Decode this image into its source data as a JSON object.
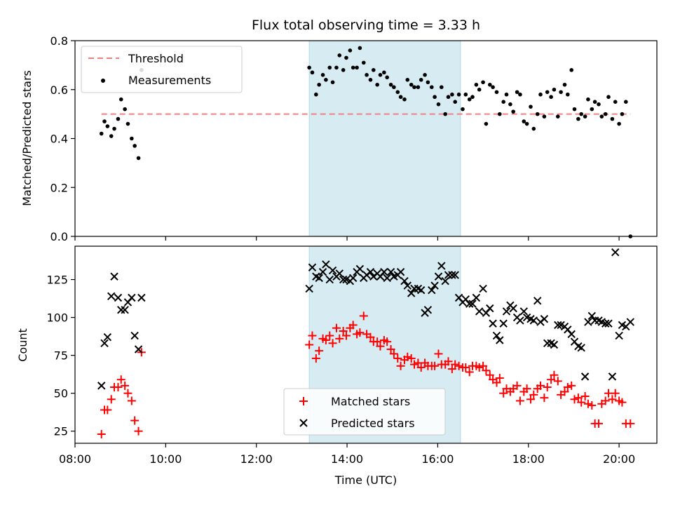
{
  "figure": {
    "title": "Flux total observing time = 3.33 h",
    "colors": {
      "threshold": "#f08080",
      "measurements": "#000000",
      "matched": "#ff0000",
      "predicted": "#000000",
      "highlight": "#add8e6"
    }
  },
  "chart_data": [
    {
      "type": "scatter",
      "ylabel": "Matched/Predicted stars",
      "xlabel": "",
      "xlim": [
        "08:00",
        "20:50"
      ],
      "ylim": [
        0,
        0.8
      ],
      "yticks": [
        "0.0",
        "0.2",
        "0.4",
        "0.6",
        "0.8"
      ],
      "highlight_span": [
        "13:10",
        "16:30"
      ],
      "legend": {
        "placement": "top-left",
        "entries": [
          "Threshold",
          "Measurements"
        ]
      },
      "threshold": {
        "name": "Threshold",
        "value": 0.5,
        "x_range": [
          "08:35",
          "20:15"
        ]
      },
      "series": [
        {
          "name": "Measurements",
          "marker": "dot",
          "x": [
            "08:35",
            "08:39",
            "08:43",
            "08:48",
            "08:52",
            "08:57",
            "09:01",
            "09:06",
            "09:10",
            "09:15",
            "09:19",
            "09:24",
            "09:28",
            "13:10",
            "13:14",
            "13:19",
            "13:23",
            "13:28",
            "13:32",
            "13:37",
            "13:41",
            "13:46",
            "13:50",
            "13:55",
            "13:59",
            "14:04",
            "14:08",
            "14:13",
            "14:17",
            "14:22",
            "14:26",
            "14:31",
            "14:35",
            "14:40",
            "14:44",
            "14:49",
            "14:53",
            "14:58",
            "15:02",
            "15:07",
            "15:11",
            "15:16",
            "15:20",
            "15:25",
            "15:29",
            "15:34",
            "15:38",
            "15:43",
            "15:47",
            "15:52",
            "15:56",
            "16:01",
            "16:05",
            "16:10",
            "16:14",
            "16:19",
            "16:23",
            "16:28",
            "16:33",
            "16:37",
            "16:42",
            "16:46",
            "16:51",
            "16:55",
            "17:00",
            "17:04",
            "17:09",
            "17:13",
            "17:18",
            "17:22",
            "17:27",
            "17:31",
            "17:36",
            "17:40",
            "17:45",
            "17:49",
            "17:54",
            "17:58",
            "18:03",
            "18:07",
            "18:12",
            "18:16",
            "18:21",
            "18:25",
            "18:30",
            "18:34",
            "18:39",
            "18:43",
            "18:48",
            "18:52",
            "18:57",
            "19:01",
            "19:06",
            "19:10",
            "19:15",
            "19:19",
            "19:24",
            "19:28",
            "19:33",
            "19:37",
            "19:42",
            "19:46",
            "19:51",
            "19:55",
            "20:00",
            "20:04",
            "20:09",
            "20:15"
          ],
          "values": [
            0.42,
            0.47,
            0.45,
            0.41,
            0.44,
            0.48,
            0.56,
            0.52,
            0.46,
            0.4,
            0.37,
            0.32,
            0.68,
            0.69,
            0.67,
            0.58,
            0.62,
            0.66,
            0.64,
            0.69,
            0.63,
            0.69,
            0.74,
            0.68,
            0.73,
            0.76,
            0.69,
            0.69,
            0.77,
            0.71,
            0.66,
            0.64,
            0.68,
            0.62,
            0.66,
            0.67,
            0.65,
            0.62,
            0.61,
            0.59,
            0.57,
            0.56,
            0.64,
            0.62,
            0.61,
            0.61,
            0.64,
            0.66,
            0.63,
            0.61,
            0.57,
            0.54,
            0.61,
            0.5,
            0.57,
            0.58,
            0.55,
            0.58,
            0.52,
            0.58,
            0.56,
            0.57,
            0.62,
            0.6,
            0.63,
            0.46,
            0.62,
            0.61,
            0.59,
            0.5,
            0.55,
            0.58,
            0.54,
            0.51,
            0.59,
            0.58,
            0.47,
            0.46,
            0.53,
            0.44,
            0.5,
            0.58,
            0.49,
            0.59,
            0.57,
            0.6,
            0.49,
            0.59,
            0.62,
            0.58,
            0.68,
            0.52,
            0.48,
            0.5,
            0.49,
            0.56,
            0.52,
            0.55,
            0.54,
            0.49,
            0.5,
            0.57,
            0.48,
            0.55,
            0.46,
            0.5,
            0.55,
            0.0
          ]
        }
      ]
    },
    {
      "type": "scatter",
      "ylabel": "Count",
      "xlabel": "Time (UTC)",
      "xlim": [
        "08:00",
        "20:50"
      ],
      "ylim": [
        17,
        147
      ],
      "yticks": [
        "25",
        "50",
        "75",
        "100",
        "125"
      ],
      "xticks": [
        "08:00",
        "10:00",
        "12:00",
        "14:00",
        "16:00",
        "18:00",
        "20:00"
      ],
      "highlight_span": [
        "13:10",
        "16:30"
      ],
      "legend": {
        "placement": "bottom-center",
        "entries": [
          "Matched stars",
          "Predicted stars"
        ]
      },
      "series": [
        {
          "name": "Matched stars",
          "marker": "plus",
          "x": [
            "08:35",
            "08:39",
            "08:43",
            "08:48",
            "08:52",
            "08:57",
            "09:01",
            "09:06",
            "09:10",
            "09:15",
            "09:19",
            "09:24",
            "09:28",
            "13:10",
            "13:14",
            "13:19",
            "13:23",
            "13:28",
            "13:32",
            "13:37",
            "13:41",
            "13:46",
            "13:50",
            "13:55",
            "13:59",
            "14:04",
            "14:08",
            "14:13",
            "14:17",
            "14:22",
            "14:26",
            "14:31",
            "14:35",
            "14:40",
            "14:44",
            "14:49",
            "14:53",
            "14:58",
            "15:02",
            "15:07",
            "15:11",
            "15:16",
            "15:20",
            "15:25",
            "15:29",
            "15:34",
            "15:38",
            "15:43",
            "15:47",
            "15:52",
            "15:56",
            "16:01",
            "16:05",
            "16:10",
            "16:14",
            "16:19",
            "16:23",
            "16:28",
            "16:33",
            "16:37",
            "16:42",
            "16:46",
            "16:51",
            "16:55",
            "17:00",
            "17:04",
            "17:09",
            "17:13",
            "17:18",
            "17:22",
            "17:27",
            "17:31",
            "17:36",
            "17:40",
            "17:45",
            "17:49",
            "17:54",
            "17:58",
            "18:03",
            "18:07",
            "18:12",
            "18:16",
            "18:21",
            "18:25",
            "18:30",
            "18:34",
            "18:39",
            "18:43",
            "18:48",
            "18:52",
            "18:57",
            "19:01",
            "19:06",
            "19:10",
            "19:15",
            "19:19",
            "19:24",
            "19:28",
            "19:33",
            "19:37",
            "19:42",
            "19:46",
            "19:51",
            "19:55",
            "20:00",
            "20:04",
            "20:09",
            "20:15"
          ],
          "values": [
            23,
            39,
            39,
            46,
            54,
            54,
            59,
            55,
            50,
            45,
            32,
            25,
            77,
            82,
            88,
            73,
            78,
            86,
            85,
            88,
            83,
            93,
            86,
            91,
            88,
            93,
            95,
            89,
            90,
            101,
            89,
            87,
            84,
            84,
            81,
            85,
            84,
            79,
            76,
            73,
            68,
            72,
            74,
            73,
            69,
            70,
            67,
            70,
            68,
            68,
            68,
            76,
            69,
            69,
            71,
            66,
            69,
            68,
            67,
            67,
            64,
            68,
            68,
            67,
            68,
            65,
            62,
            59,
            57,
            60,
            50,
            53,
            51,
            53,
            55,
            45,
            51,
            53,
            46,
            49,
            53,
            55,
            47,
            54,
            59,
            62,
            58,
            49,
            51,
            54,
            55,
            46,
            47,
            44,
            48,
            43,
            42,
            30,
            30,
            43,
            45,
            50,
            46,
            50,
            45,
            44,
            30,
            30
          ]
        },
        {
          "name": "Predicted stars",
          "marker": "x",
          "x": [
            "08:35",
            "08:39",
            "08:43",
            "08:48",
            "08:52",
            "08:57",
            "09:01",
            "09:06",
            "09:10",
            "09:15",
            "09:19",
            "09:24",
            "09:28",
            "13:10",
            "13:14",
            "13:19",
            "13:23",
            "13:28",
            "13:32",
            "13:37",
            "13:41",
            "13:46",
            "13:50",
            "13:55",
            "13:59",
            "14:04",
            "14:08",
            "14:13",
            "14:17",
            "14:22",
            "14:26",
            "14:31",
            "14:35",
            "14:40",
            "14:44",
            "14:49",
            "14:53",
            "14:58",
            "15:02",
            "15:07",
            "15:11",
            "15:16",
            "15:20",
            "15:25",
            "15:29",
            "15:34",
            "15:38",
            "15:43",
            "15:47",
            "15:52",
            "15:56",
            "16:01",
            "16:05",
            "16:10",
            "16:14",
            "16:19",
            "16:23",
            "16:28",
            "16:33",
            "16:37",
            "16:42",
            "16:46",
            "16:51",
            "16:55",
            "17:00",
            "17:04",
            "17:09",
            "17:13",
            "17:18",
            "17:22",
            "17:27",
            "17:31",
            "17:36",
            "17:40",
            "17:45",
            "17:49",
            "17:54",
            "17:58",
            "18:03",
            "18:07",
            "18:12",
            "18:16",
            "18:21",
            "18:25",
            "18:30",
            "18:34",
            "18:39",
            "18:43",
            "18:48",
            "18:52",
            "18:57",
            "19:01",
            "19:06",
            "19:10",
            "19:15",
            "19:19",
            "19:24",
            "19:28",
            "19:33",
            "19:37",
            "19:42",
            "19:46",
            "19:51",
            "19:55",
            "20:00",
            "20:04",
            "20:09",
            "20:15"
          ],
          "values": [
            55,
            83,
            87,
            114,
            127,
            113,
            105,
            105,
            110,
            113,
            88,
            79,
            113,
            119,
            133,
            127,
            126,
            130,
            135,
            125,
            131,
            127,
            129,
            125,
            125,
            124,
            126,
            130,
            132,
            126,
            128,
            130,
            127,
            129,
            127,
            130,
            126,
            130,
            127,
            128,
            130,
            124,
            121,
            116,
            119,
            119,
            118,
            103,
            105,
            118,
            121,
            127,
            134,
            124,
            128,
            128,
            128,
            113,
            110,
            112,
            109,
            109,
            113,
            104,
            119,
            103,
            106,
            96,
            88,
            85,
            96,
            104,
            108,
            106,
            100,
            98,
            104,
            100,
            99,
            98,
            111,
            97,
            99,
            83,
            83,
            82,
            95,
            95,
            94,
            92,
            89,
            84,
            81,
            80,
            61,
            97,
            101,
            98,
            98,
            97,
            96,
            96,
            61,
            143,
            88,
            95,
            94,
            97
          ]
        }
      ]
    }
  ]
}
